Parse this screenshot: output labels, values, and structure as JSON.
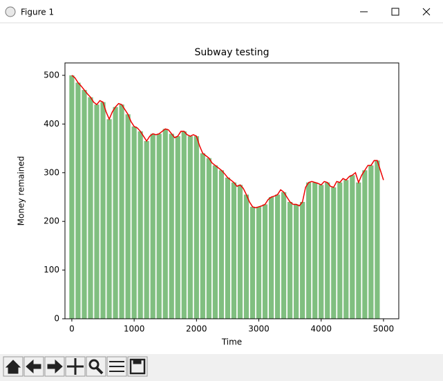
{
  "window": {
    "title": "Figure 1"
  },
  "chart_data": {
    "type": "bar",
    "title": "Subway testing",
    "xlabel": "Time",
    "ylabel": "Money remained",
    "xlim": [
      -110,
      5245
    ],
    "ylim": [
      0,
      525.5
    ],
    "xticks": [
      0,
      1000,
      2000,
      3000,
      4000,
      5000
    ],
    "yticks": [
      0,
      100,
      200,
      300,
      400,
      500
    ],
    "series": [
      {
        "type": "bar",
        "color": "#80bf80",
        "x": [
          0,
          100,
          200,
          300,
          400,
          500,
          600,
          700,
          800,
          900,
          1000,
          1100,
          1200,
          1300,
          1400,
          1500,
          1600,
          1700,
          1800,
          1900,
          2000,
          2100,
          2200,
          2300,
          2400,
          2500,
          2600,
          2700,
          2800,
          2900,
          3000,
          3100,
          3200,
          3300,
          3400,
          3500,
          3600,
          3700,
          3800,
          3900,
          4000,
          4100,
          4200,
          4300,
          4400,
          4500,
          4600,
          4700,
          4800,
          4900
        ],
        "values": [
          500,
          485,
          470,
          455,
          440,
          445,
          410,
          435,
          440,
          420,
          395,
          385,
          365,
          380,
          380,
          390,
          380,
          375,
          385,
          375,
          375,
          340,
          330,
          315,
          305,
          290,
          280,
          275,
          255,
          230,
          230,
          235,
          250,
          255,
          260,
          240,
          235,
          240,
          280,
          280,
          275,
          280,
          270,
          280,
          285,
          295,
          280,
          305,
          315,
          325
        ]
      },
      {
        "type": "line",
        "color": "#ee0000",
        "x": [
          0,
          50,
          100,
          150,
          200,
          250,
          300,
          350,
          400,
          450,
          500,
          550,
          600,
          650,
          700,
          750,
          800,
          850,
          900,
          950,
          1000,
          1050,
          1100,
          1150,
          1200,
          1250,
          1300,
          1350,
          1400,
          1450,
          1500,
          1550,
          1600,
          1650,
          1700,
          1750,
          1800,
          1850,
          1900,
          1950,
          2000,
          2050,
          2100,
          2150,
          2200,
          2250,
          2300,
          2350,
          2400,
          2450,
          2500,
          2550,
          2600,
          2650,
          2700,
          2750,
          2800,
          2850,
          2900,
          2950,
          3000,
          3050,
          3100,
          3150,
          3200,
          3250,
          3300,
          3350,
          3400,
          3450,
          3500,
          3550,
          3600,
          3650,
          3700,
          3750,
          3800,
          3850,
          3900,
          3950,
          4000,
          4050,
          4100,
          4150,
          4200,
          4250,
          4300,
          4350,
          4400,
          4450,
          4500,
          4550,
          4600,
          4650,
          4700,
          4750,
          4800,
          4850,
          4900,
          4950,
          5000
        ],
        "values": [
          500,
          495,
          485,
          478,
          470,
          462,
          455,
          445,
          440,
          448,
          445,
          425,
          410,
          425,
          435,
          442,
          440,
          430,
          420,
          405,
          395,
          392,
          385,
          375,
          365,
          375,
          380,
          378,
          380,
          385,
          390,
          388,
          380,
          372,
          375,
          385,
          385,
          378,
          375,
          378,
          375,
          355,
          340,
          335,
          330,
          320,
          315,
          310,
          305,
          298,
          290,
          285,
          280,
          272,
          275,
          268,
          255,
          240,
          230,
          228,
          230,
          232,
          235,
          245,
          250,
          252,
          255,
          265,
          260,
          250,
          240,
          235,
          235,
          232,
          240,
          270,
          280,
          282,
          280,
          278,
          275,
          282,
          280,
          272,
          270,
          282,
          280,
          288,
          285,
          292,
          295,
          300,
          280,
          295,
          305,
          315,
          315,
          325,
          325,
          305,
          285
        ]
      }
    ]
  }
}
